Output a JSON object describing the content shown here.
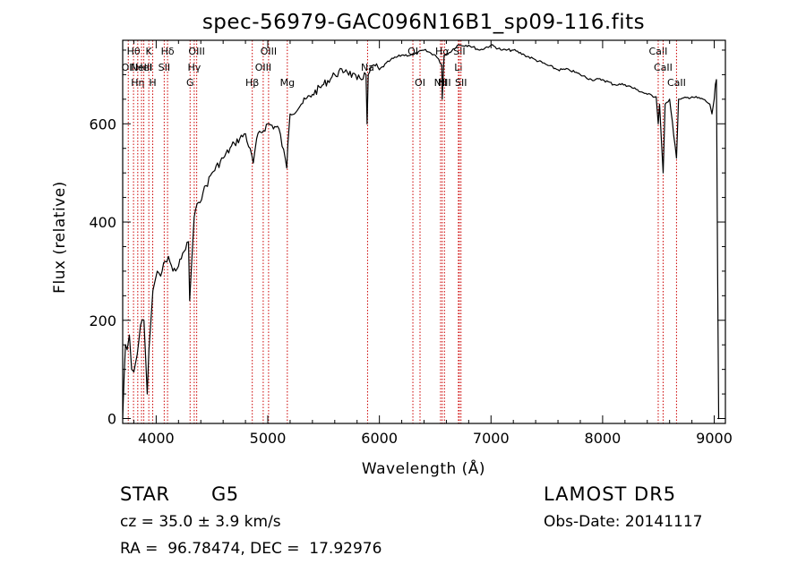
{
  "chart_data": {
    "type": "line",
    "title": "spec-56979-GAC096N16B1_sp09-116.fits",
    "xlabel": "Wavelength (Å)",
    "ylabel": "Flux (relative)",
    "xlim": [
      3700,
      9100
    ],
    "ylim": [
      -10,
      770
    ],
    "xticks": [
      4000,
      5000,
      6000,
      7000,
      8000,
      9000
    ],
    "yticks": [
      0,
      200,
      400,
      600
    ],
    "grid": false,
    "line_color": "#000000",
    "marker_color": "#cc0000",
    "series": [
      {
        "x": [
          3700,
          3712,
          3725,
          3740,
          3760,
          3780,
          3800,
          3830,
          3860,
          3890,
          3920,
          3935,
          3950,
          3970,
          3990,
          4010,
          4040,
          4080,
          4110,
          4150,
          4200,
          4250,
          4290,
          4300,
          4340,
          4380,
          4420,
          4500,
          4600,
          4700,
          4800,
          4870,
          4900,
          5000,
          5100,
          5170,
          5180,
          5200,
          5300,
          5400,
          5500,
          5600,
          5700,
          5800,
          5880,
          5890,
          5900,
          5950,
          6000,
          6100,
          6200,
          6300,
          6400,
          6500,
          6560,
          6563,
          6580,
          6600,
          6700,
          6800,
          6900,
          7000,
          7100,
          7200,
          7300,
          7400,
          7500,
          7600,
          7700,
          7800,
          7900,
          8000,
          8100,
          8200,
          8300,
          8400,
          8480,
          8498,
          8510,
          8542,
          8560,
          8600,
          8662,
          8680,
          8700,
          8800,
          8900,
          8960,
          8980,
          9000,
          9010,
          9020,
          9030,
          9040,
          9045
        ],
        "y": [
          0,
          80,
          150,
          140,
          170,
          100,
          95,
          130,
          190,
          200,
          50,
          140,
          190,
          260,
          280,
          300,
          290,
          320,
          330,
          300,
          310,
          340,
          360,
          240,
          410,
          440,
          460,
          500,
          530,
          560,
          580,
          520,
          570,
          600,
          590,
          510,
          560,
          620,
          640,
          660,
          680,
          700,
          710,
          690,
          700,
          600,
          700,
          720,
          710,
          730,
          740,
          740,
          750,
          740,
          720,
          650,
          740,
          740,
          760,
          760,
          750,
          760,
          750,
          750,
          740,
          730,
          720,
          710,
          710,
          700,
          690,
          690,
          680,
          680,
          670,
          660,
          655,
          600,
          640,
          500,
          640,
          650,
          530,
          650,
          650,
          655,
          650,
          640,
          620,
          650,
          680,
          690,
          300,
          0,
          0
        ]
      }
    ],
    "lines": [
      {
        "x": 3750,
        "label": "OII",
        "row": 1
      },
      {
        "x": 3797,
        "label": "Hθ",
        "row": 0
      },
      {
        "x": 3835,
        "label": "Hη",
        "row": 2
      },
      {
        "x": 3869,
        "label": "NeIII",
        "row": 1
      },
      {
        "x": 3889,
        "label": "HeI",
        "row": 1
      },
      {
        "x": 3934,
        "label": "K",
        "row": 0
      },
      {
        "x": 3969,
        "label": "H",
        "row": 2
      },
      {
        "x": 4072,
        "label": "SII",
        "row": 1
      },
      {
        "x": 4102,
        "label": "Hδ",
        "row": 0
      },
      {
        "x": 4304,
        "label": "G",
        "row": 2
      },
      {
        "x": 4341,
        "label": "Hγ",
        "row": 1
      },
      {
        "x": 4363,
        "label": "OIII",
        "row": 0
      },
      {
        "x": 4861,
        "label": "Hβ",
        "row": 2
      },
      {
        "x": 4959,
        "label": "OIII",
        "row": 1
      },
      {
        "x": 5007,
        "label": "OIII",
        "row": 0
      },
      {
        "x": 5175,
        "label": "Mg",
        "row": 2
      },
      {
        "x": 5894,
        "label": "Na",
        "row": 1
      },
      {
        "x": 6300,
        "label": "OI",
        "row": 0
      },
      {
        "x": 6364,
        "label": "OI",
        "row": 2
      },
      {
        "x": 6548,
        "label": "NII",
        "row": 2
      },
      {
        "x": 6563,
        "label": "Hα",
        "row": 0
      },
      {
        "x": 6583,
        "label": "NII",
        "row": 2
      },
      {
        "x": 6708,
        "label": "Li",
        "row": 1
      },
      {
        "x": 6716,
        "label": "SII",
        "row": 0
      },
      {
        "x": 6731,
        "label": "SII",
        "row": 2
      },
      {
        "x": 8498,
        "label": "CaII",
        "row": 0
      },
      {
        "x": 8542,
        "label": "CaII",
        "row": 1
      },
      {
        "x": 8662,
        "label": "CaII",
        "row": 2
      }
    ]
  },
  "info": {
    "object_class": "STAR",
    "subclass": "G5",
    "survey": "LAMOST DR5",
    "cz": "cz = 35.0 ± 3.9 km/s",
    "obs_date": "Obs-Date: 20141117",
    "ra_dec": "RA =  96.78474, DEC =  17.92976"
  }
}
